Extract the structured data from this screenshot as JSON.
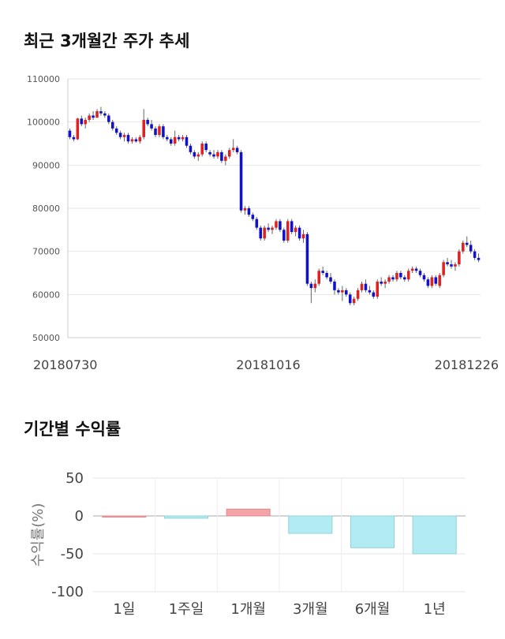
{
  "section1": {
    "title": "최근 3개월간 주가 추세"
  },
  "section2": {
    "title": "기간별 수익률"
  },
  "chart_data": [
    {
      "type": "candlestick",
      "ylim": [
        50000,
        110000
      ],
      "yticks": [
        50000,
        60000,
        70000,
        80000,
        90000,
        100000,
        110000
      ],
      "xticks": [
        "20180730",
        "20181016",
        "20181226"
      ],
      "grid": true,
      "up_color": "#dd2222",
      "down_color": "#1111cc",
      "ohlc": [
        [
          98000,
          98500,
          96000,
          96500
        ],
        [
          96500,
          97000,
          95500,
          96000
        ],
        [
          96000,
          101000,
          95800,
          100800
        ],
        [
          100800,
          101500,
          99000,
          99500
        ],
        [
          99500,
          101000,
          98500,
          100500
        ],
        [
          100500,
          102000,
          100000,
          101500
        ],
        [
          101500,
          102500,
          100500,
          101000
        ],
        [
          101000,
          103000,
          101000,
          102500
        ],
        [
          102500,
          103500,
          101500,
          102000
        ],
        [
          102000,
          102500,
          101000,
          101500
        ],
        [
          101500,
          102000,
          99500,
          100000
        ],
        [
          100000,
          100500,
          98000,
          98500
        ],
        [
          98500,
          99000,
          97000,
          97500
        ],
        [
          97500,
          98000,
          96000,
          96500
        ],
        [
          96500,
          97500,
          95500,
          97000
        ],
        [
          97000,
          97500,
          95000,
          95500
        ],
        [
          95500,
          96500,
          95000,
          96000
        ],
        [
          96000,
          96500,
          95200,
          95500
        ],
        [
          95500,
          97000,
          95000,
          96500
        ],
        [
          96500,
          103000,
          96000,
          100500
        ],
        [
          100500,
          101000,
          99000,
          99500
        ],
        [
          99500,
          100500,
          98000,
          98500
        ],
        [
          98500,
          99000,
          96500,
          97000
        ],
        [
          97000,
          99500,
          96500,
          99000
        ],
        [
          99000,
          99500,
          96000,
          96500
        ],
        [
          96500,
          97000,
          95500,
          96000
        ],
        [
          96000,
          96500,
          94500,
          95000
        ],
        [
          95000,
          98000,
          94500,
          96500
        ],
        [
          96500,
          97000,
          95500,
          96000
        ],
        [
          96000,
          97000,
          95500,
          96500
        ],
        [
          96500,
          97000,
          94000,
          94500
        ],
        [
          94500,
          95000,
          92500,
          93000
        ],
        [
          93000,
          93500,
          91500,
          92000
        ],
        [
          92000,
          93000,
          91000,
          92500
        ],
        [
          92500,
          95500,
          92000,
          95000
        ],
        [
          95000,
          95500,
          93000,
          93500
        ],
        [
          93000,
          93500,
          92000,
          92500
        ],
        [
          92500,
          93500,
          91500,
          92000
        ],
        [
          92000,
          93500,
          91500,
          93000
        ],
        [
          93000,
          93500,
          90500,
          91000
        ],
        [
          91000,
          92500,
          90000,
          92000
        ],
        [
          92000,
          94000,
          91500,
          93500
        ],
        [
          93500,
          96000,
          93000,
          94000
        ],
        [
          94000,
          94500,
          92500,
          93000
        ],
        [
          93000,
          93500,
          79000,
          79500
        ],
        [
          79500,
          80500,
          78500,
          80000
        ],
        [
          80000,
          80500,
          78000,
          78500
        ],
        [
          78500,
          79000,
          77000,
          77500
        ],
        [
          77500,
          78000,
          75000,
          75500
        ],
        [
          75500,
          76000,
          72500,
          73000
        ],
        [
          73000,
          76000,
          72500,
          75500
        ],
        [
          75500,
          76500,
          74500,
          75000
        ],
        [
          75000,
          76000,
          74000,
          75500
        ],
        [
          75500,
          77500,
          75000,
          77000
        ],
        [
          77000,
          77500,
          74500,
          75000
        ],
        [
          75000,
          75500,
          72000,
          72500
        ],
        [
          72500,
          77500,
          72000,
          77000
        ],
        [
          77000,
          77500,
          74000,
          74500
        ],
        [
          74500,
          76000,
          73500,
          75500
        ],
        [
          75500,
          76000,
          72500,
          73000
        ],
        [
          73000,
          75000,
          72000,
          74000
        ],
        [
          74000,
          74500,
          62000,
          62500
        ],
        [
          62500,
          63000,
          58000,
          61500
        ],
        [
          61500,
          63500,
          60500,
          62500
        ],
        [
          62500,
          66000,
          62000,
          65500
        ],
        [
          65500,
          66500,
          64500,
          65000
        ],
        [
          65000,
          65500,
          63500,
          64000
        ],
        [
          64000,
          65000,
          62500,
          63000
        ],
        [
          63000,
          63500,
          60000,
          61000
        ],
        [
          61000,
          61500,
          60000,
          60500
        ],
        [
          60500,
          62000,
          58500,
          61000
        ],
        [
          61000,
          61500,
          59500,
          60000
        ],
        [
          60000,
          60500,
          57500,
          58000
        ],
        [
          58000,
          59500,
          57500,
          59000
        ],
        [
          59000,
          61500,
          58500,
          61000
        ],
        [
          61000,
          63000,
          60500,
          62500
        ],
        [
          62500,
          63500,
          60500,
          61000
        ],
        [
          61000,
          62000,
          60000,
          60500
        ],
        [
          60500,
          61000,
          59000,
          59500
        ],
        [
          59500,
          63500,
          59000,
          63000
        ],
        [
          63000,
          64000,
          62000,
          62500
        ],
        [
          62500,
          63500,
          61500,
          63000
        ],
        [
          63000,
          64500,
          62500,
          64000
        ],
        [
          64000,
          64500,
          63000,
          63500
        ],
        [
          63500,
          65500,
          63000,
          65000
        ],
        [
          65000,
          65500,
          63500,
          64000
        ],
        [
          64000,
          64500,
          63000,
          63500
        ],
        [
          63500,
          66000,
          63000,
          65500
        ],
        [
          65500,
          66500,
          65000,
          66000
        ],
        [
          66000,
          66500,
          65000,
          65500
        ],
        [
          65500,
          66000,
          64000,
          64500
        ],
        [
          64500,
          65000,
          63000,
          63500
        ],
        [
          63500,
          64000,
          61500,
          62000
        ],
        [
          62000,
          64500,
          61500,
          64000
        ],
        [
          64000,
          64500,
          62000,
          62500
        ],
        [
          62000,
          65000,
          61500,
          64500
        ],
        [
          64500,
          68000,
          64000,
          67500
        ],
        [
          67500,
          68500,
          66500,
          67000
        ],
        [
          67000,
          68000,
          66000,
          66500
        ],
        [
          66500,
          67500,
          65500,
          67000
        ],
        [
          67000,
          70500,
          66500,
          70000
        ],
        [
          70000,
          72500,
          69500,
          72000
        ],
        [
          72000,
          73500,
          71000,
          71500
        ],
        [
          71500,
          72500,
          69500,
          70000
        ],
        [
          70000,
          70500,
          68000,
          68500
        ],
        [
          68500,
          69500,
          67500,
          68000
        ]
      ]
    },
    {
      "type": "bar",
      "ylabel": "수익률(%)",
      "ylim": [
        -100,
        50
      ],
      "yticks": [
        50,
        0,
        -50,
        -100
      ],
      "categories": [
        "1일",
        "1주일",
        "1개월",
        "3개월",
        "6개월",
        "1년"
      ],
      "values": [
        0,
        -3,
        9,
        -23,
        -42,
        -50
      ],
      "pos_color": "#f4a3a8",
      "neg_color": "#b3ebf2",
      "grid": true
    }
  ]
}
